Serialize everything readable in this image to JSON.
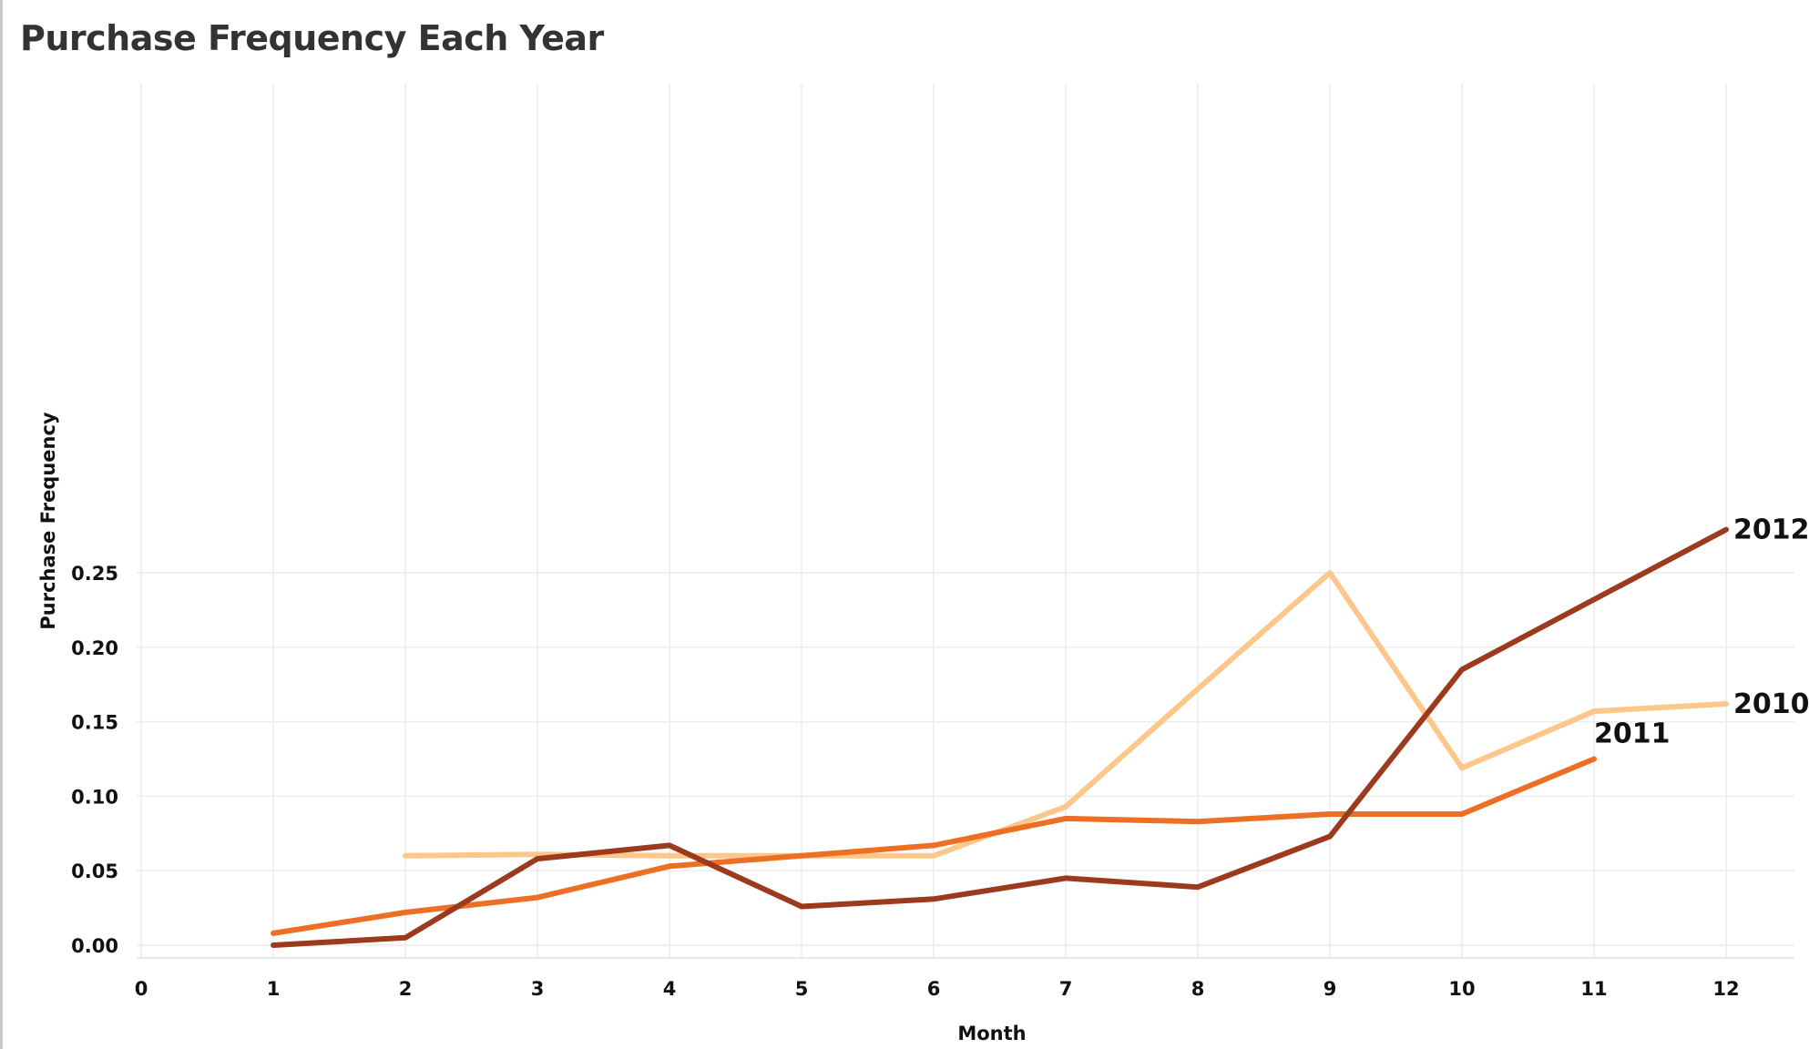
{
  "chart_data": {
    "type": "line",
    "title": "Purchase Frequency Each Year",
    "xlabel": "Month",
    "ylabel": "Purchase Frequency",
    "xlim": [
      0,
      12.3
    ],
    "ylim": [
      -0.005,
      0.29
    ],
    "x_ticks": [
      "0",
      "1",
      "2",
      "3",
      "4",
      "5",
      "6",
      "7",
      "8",
      "9",
      "10",
      "11",
      "12"
    ],
    "y_ticks": [
      "0.00",
      "0.05",
      "0.10",
      "0.15",
      "0.20",
      "0.25"
    ],
    "grid": true,
    "legend": "direct labels at line ends",
    "series": [
      {
        "name": "2010",
        "color": "#fdc68a",
        "x": [
          2,
          3,
          4,
          5,
          6,
          7,
          8,
          9,
          10,
          11,
          12
        ],
        "y": [
          0.06,
          0.061,
          0.06,
          0.06,
          0.06,
          0.093,
          0.172,
          0.25,
          0.119,
          0.157,
          0.162
        ]
      },
      {
        "name": "2011",
        "color": "#ec6f24",
        "x": [
          1,
          2,
          3,
          4,
          5,
          6,
          7,
          8,
          9,
          10,
          11
        ],
        "y": [
          0.008,
          0.022,
          0.032,
          0.053,
          0.06,
          0.067,
          0.085,
          0.083,
          0.088,
          0.088,
          0.125
        ]
      },
      {
        "name": "2012",
        "color": "#9c3a1e",
        "x": [
          1,
          2,
          3,
          4,
          5,
          6,
          7,
          8,
          9,
          10,
          11,
          12
        ],
        "y": [
          0.0,
          0.005,
          0.058,
          0.067,
          0.026,
          0.031,
          0.045,
          0.039,
          0.073,
          0.185,
          0.232,
          0.279
        ]
      }
    ]
  }
}
